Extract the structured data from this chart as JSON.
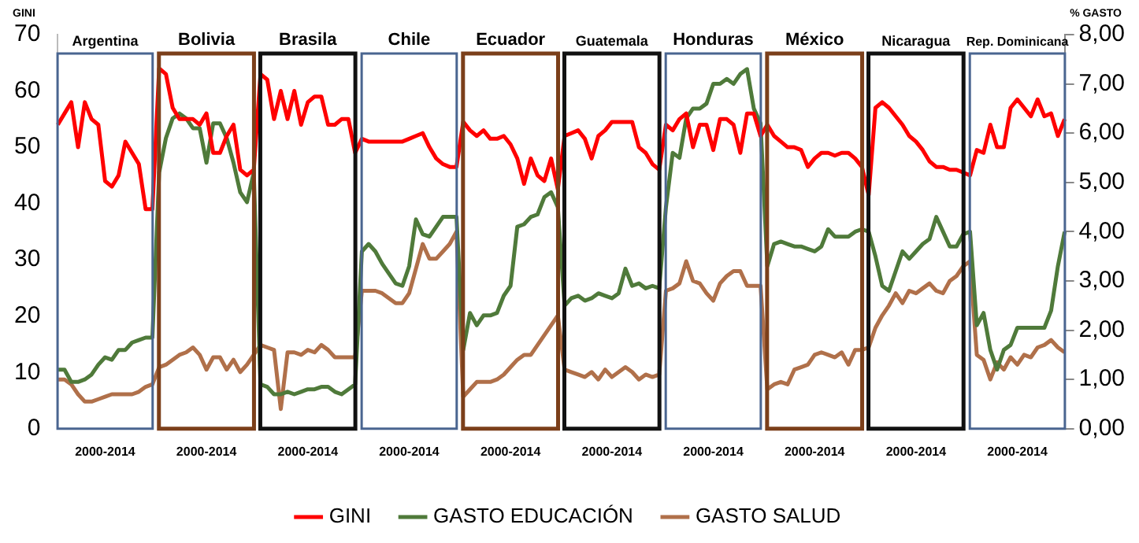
{
  "chart_data": {
    "type": "line",
    "ylabel": "GINI",
    "y2label": "% GASTO",
    "categories": [
      null,
      null,
      null,
      null,
      null,
      null,
      null,
      "2000-2014",
      null,
      null,
      null,
      null,
      null,
      null,
      null,
      null,
      null,
      null,
      null,
      null,
      null,
      null,
      "2000-2014",
      null,
      null,
      null,
      null,
      null,
      null,
      null,
      null,
      null,
      null,
      null,
      null,
      null,
      null,
      "2000-2014",
      null,
      null,
      null,
      null,
      null,
      null,
      null,
      null,
      null,
      null,
      null,
      null,
      null,
      null,
      "2000-2014",
      null,
      null,
      null,
      null,
      null,
      null,
      null,
      null,
      null,
      null,
      null,
      null,
      null,
      null,
      "2000-2014",
      null,
      null,
      null,
      null,
      null,
      null,
      null,
      null,
      null,
      null,
      null,
      null,
      null,
      null,
      "2000-2014",
      null,
      null,
      null,
      null,
      null,
      null,
      null,
      null,
      null,
      null,
      null,
      null,
      null,
      null,
      "2000-2014",
      null,
      null,
      null,
      null,
      null,
      null,
      null,
      null,
      null,
      null,
      null,
      null,
      null,
      null,
      "2000-2014",
      null,
      null,
      null,
      null,
      null,
      null,
      null,
      null,
      null,
      null,
      null,
      null,
      null,
      null,
      "2000-2014",
      null,
      null,
      null,
      null,
      null,
      null,
      null,
      null,
      null,
      null,
      null,
      null,
      null,
      null,
      "2000-2014",
      null,
      null,
      null,
      null,
      null,
      null,
      null
    ],
    "series": [
      {
        "name": "GINI",
        "color": "#ff0000",
        "values": [
          54,
          56,
          58,
          50,
          58,
          55,
          54,
          44,
          43,
          45,
          51,
          49,
          47,
          39,
          39,
          64,
          63,
          57,
          55,
          55,
          55,
          54,
          56,
          49,
          49,
          52,
          54,
          46,
          45,
          46,
          63,
          62,
          55,
          60,
          55,
          60,
          54,
          58,
          59,
          59,
          54,
          54,
          55,
          55,
          49,
          51.5,
          51,
          51,
          51,
          51,
          51,
          51,
          51.5,
          52,
          52.5,
          50,
          48,
          47,
          46.5,
          46.5,
          54.5,
          53,
          52,
          53,
          51.5,
          51.5,
          52,
          50.5,
          48,
          43.5,
          48,
          45,
          44,
          48,
          42.5,
          52,
          52.5,
          53,
          51.5,
          48,
          52,
          53,
          54.5,
          54.5,
          54.5,
          54.5,
          50,
          49,
          47,
          46,
          54,
          53,
          55,
          56,
          50,
          54,
          54,
          49.5,
          55,
          55,
          54,
          49,
          56,
          56,
          52,
          54,
          52,
          51,
          50,
          50,
          49.5,
          46.5,
          48,
          49,
          49,
          48.5,
          49,
          49,
          48,
          46.5,
          41.5,
          57,
          58,
          57,
          55.5,
          54,
          52,
          51,
          49.5,
          47.5,
          46.5,
          46.5,
          46,
          46,
          45.5,
          45,
          49.5,
          49,
          54,
          50,
          50,
          57,
          58.5,
          57,
          55.5,
          58.5,
          55.5,
          56,
          52,
          55
        ]
      },
      {
        "name": "GASTO EDUCACIÓN",
        "color": "#4f7a3a",
        "axis": "y2",
        "values": [
          1.2,
          1.2,
          0.95,
          0.95,
          1.0,
          1.1,
          1.3,
          1.45,
          1.4,
          1.6,
          1.6,
          1.75,
          1.8,
          1.85,
          1.85,
          5.2,
          5.9,
          6.3,
          6.4,
          6.3,
          6.1,
          6.1,
          5.4,
          6.2,
          6.2,
          5.9,
          5.4,
          4.8,
          4.6,
          5.2,
          0.9,
          0.85,
          0.7,
          0.7,
          0.75,
          0.7,
          0.75,
          0.8,
          0.8,
          0.85,
          0.85,
          0.75,
          0.7,
          0.8,
          0.9,
          3.6,
          3.75,
          3.6,
          3.35,
          3.15,
          2.95,
          2.9,
          3.3,
          4.25,
          3.95,
          3.9,
          4.1,
          4.3,
          4.3,
          4.3,
          1.6,
          2.35,
          2.1,
          2.3,
          2.3,
          2.35,
          2.7,
          2.9,
          4.1,
          4.15,
          4.3,
          4.35,
          4.7,
          4.8,
          4.5,
          2.5,
          2.65,
          2.7,
          2.6,
          2.65,
          2.75,
          2.7,
          2.65,
          2.75,
          3.25,
          2.9,
          2.95,
          2.85,
          2.9,
          2.85,
          4.5,
          5.6,
          5.5,
          6.3,
          6.5,
          6.5,
          6.6,
          7.0,
          7.0,
          7.1,
          7.0,
          7.2,
          7.3,
          6.5,
          6.2,
          3.3,
          3.75,
          3.8,
          3.75,
          3.7,
          3.7,
          3.65,
          3.6,
          3.7,
          4.05,
          3.9,
          3.9,
          3.9,
          4.0,
          4.05,
          4.0,
          3.5,
          2.9,
          2.8,
          3.2,
          3.6,
          3.45,
          3.6,
          3.75,
          3.85,
          4.3,
          4.0,
          3.7,
          3.7,
          3.95,
          4.0,
          2.1,
          2.35,
          1.6,
          1.2,
          1.6,
          1.7,
          2.05,
          2.05,
          2.05,
          2.05,
          2.05,
          2.4,
          3.3,
          4.0
        ]
      },
      {
        "name": "GASTO SALUD",
        "color": "#b0704a",
        "axis": "y2",
        "values": [
          1.0,
          1.0,
          0.9,
          0.7,
          0.55,
          0.55,
          0.6,
          0.65,
          0.7,
          0.7,
          0.7,
          0.7,
          0.75,
          0.85,
          0.9,
          1.25,
          1.3,
          1.4,
          1.5,
          1.55,
          1.65,
          1.5,
          1.2,
          1.45,
          1.45,
          1.2,
          1.4,
          1.15,
          1.3,
          1.5,
          1.7,
          1.65,
          1.6,
          0.4,
          1.55,
          1.55,
          1.5,
          1.6,
          1.55,
          1.7,
          1.6,
          1.45,
          1.45,
          1.45,
          1.45,
          2.8,
          2.8,
          2.8,
          2.75,
          2.65,
          2.55,
          2.55,
          2.75,
          3.25,
          3.75,
          3.45,
          3.45,
          3.6,
          3.75,
          4.0,
          0.65,
          0.8,
          0.95,
          0.95,
          0.95,
          1.0,
          1.1,
          1.25,
          1.4,
          1.5,
          1.5,
          1.7,
          1.9,
          2.1,
          2.3,
          1.2,
          1.15,
          1.1,
          1.05,
          1.15,
          1.0,
          1.2,
          1.05,
          1.15,
          1.25,
          1.15,
          1.0,
          1.1,
          1.05,
          1.1,
          2.8,
          2.85,
          2.95,
          3.4,
          3.0,
          2.95,
          2.75,
          2.6,
          2.95,
          3.1,
          3.2,
          3.2,
          2.9,
          2.9,
          2.9,
          0.8,
          0.9,
          0.95,
          0.9,
          1.2,
          1.25,
          1.3,
          1.5,
          1.55,
          1.5,
          1.45,
          1.55,
          1.3,
          1.6,
          1.6,
          1.65,
          2.05,
          2.3,
          2.5,
          2.75,
          2.55,
          2.8,
          2.75,
          2.85,
          2.95,
          2.8,
          2.75,
          3.0,
          3.1,
          3.3,
          3.4,
          1.5,
          1.4,
          1.0,
          1.35,
          1.2,
          1.45,
          1.3,
          1.5,
          1.45,
          1.65,
          1.7,
          1.8,
          1.65,
          1.55
        ]
      }
    ],
    "ylim": [
      0,
      70
    ],
    "yticks": [
      0,
      10,
      20,
      30,
      40,
      50,
      60,
      70
    ],
    "y2lim": [
      0,
      8
    ],
    "y2ticks": [
      {
        "value": 0,
        "label": "0,00"
      },
      {
        "value": 1,
        "label": "1,00"
      },
      {
        "value": 2,
        "label": "2,00"
      },
      {
        "value": 3,
        "label": "3,00"
      },
      {
        "value": 4,
        "label": "4,00"
      },
      {
        "value": 5,
        "label": "5,00"
      },
      {
        "value": 6,
        "label": "6,00"
      },
      {
        "value": 7,
        "label": "7,00"
      },
      {
        "value": 8,
        "label": "8,00"
      }
    ],
    "annotations": [
      "Argentina",
      "Bolivia",
      "Brasila",
      "Chile",
      "Ecuador",
      "Guatemala",
      "Honduras",
      "México",
      "Nicaragua",
      "Rep. Dominicana"
    ],
    "grid": false,
    "legend": "bottom",
    "marker": "none",
    "line_style": "solid"
  }
}
